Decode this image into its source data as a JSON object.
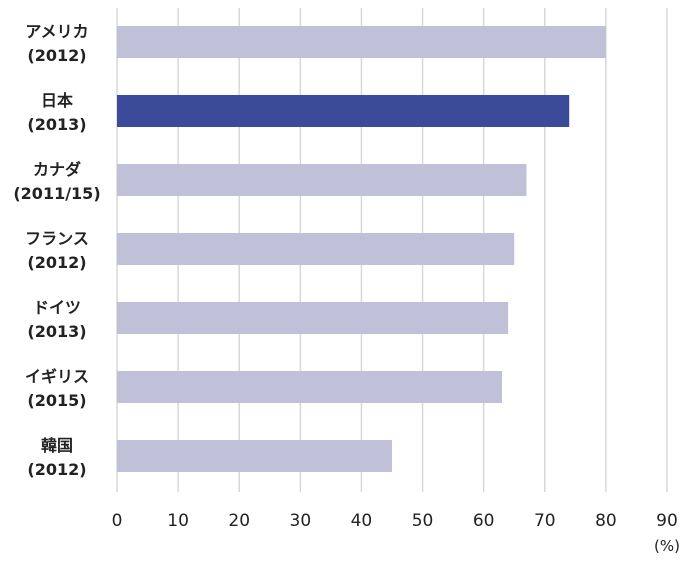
{
  "chart_data": {
    "type": "bar",
    "orientation": "horizontal",
    "categories": [
      {
        "name": "アメリカ",
        "year": "(2012)"
      },
      {
        "name": "日本",
        "year": "(2013)"
      },
      {
        "name": "カナダ",
        "year": "(2011/15)"
      },
      {
        "name": "フランス",
        "year": "(2012)"
      },
      {
        "name": "ドイツ",
        "year": "(2013)"
      },
      {
        "name": "イギリス",
        "year": "(2015)"
      },
      {
        "name": "韓国",
        "year": "(2012)"
      }
    ],
    "values": [
      80,
      74,
      67,
      65,
      64,
      63,
      45
    ],
    "highlight_index": 1,
    "xlim": [
      0,
      90
    ],
    "xticks": [
      0,
      10,
      20,
      30,
      40,
      50,
      60,
      70,
      80,
      90
    ],
    "unit_label": "(%)",
    "grid": "vertical",
    "colors": {
      "bar": "#c0c0d8",
      "highlight": "#3c4a9a",
      "grid": "#d8d8d8",
      "text": "#222222"
    }
  }
}
